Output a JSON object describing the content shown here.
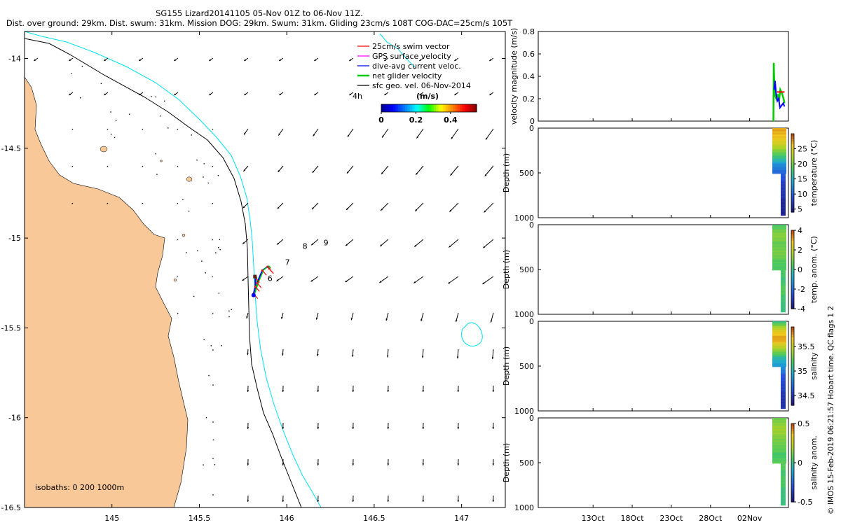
{
  "header": {
    "line1": "SG155 Lizard20141105 05-Nov 01Z to 06-Nov 11Z.",
    "line2": "Dist. over ground: 29km. Dist. swum: 31km. Mission DOG: 29km. Swum: 31km. Gliding 23cm/s 108T COG-DAC=25cm/s 105T"
  },
  "credit": "© IMOS 15-Feb-2019 06:21:57 Hobart time. QC flags 1  2",
  "colors": {
    "land": "#f8c898",
    "isobath_200": "#000000",
    "isobath_1000": "#00e0f0",
    "swim": "#ff0000",
    "gps": "#ff00ff",
    "dac": "#0000ff",
    "net": "#00cc00",
    "geo": "#000000"
  },
  "chart_data": [
    {
      "type": "map",
      "title": "",
      "xlim": [
        144.5,
        147.25
      ],
      "ylim": [
        -16.5,
        -13.85
      ],
      "xticks": [
        145,
        145.5,
        146,
        146.5,
        147
      ],
      "xtick_labels": [
        "145",
        "145.5",
        "146",
        "146.5",
        "147"
      ],
      "yticks": [
        -14,
        -14.5,
        -15,
        -15.5,
        -16,
        -16.5
      ],
      "ytick_labels": [
        "-14",
        "-14.5",
        "-15",
        "-15.5",
        "-16",
        "-16.5"
      ],
      "legend": [
        {
          "label": "25cm/s swim vector",
          "color": "#ff0000"
        },
        {
          "label": "GPS surface velocity",
          "color": "#ff00ff"
        },
        {
          "label": "dive-avg current veloc.",
          "color": "#0000ff"
        },
        {
          "label": "net glider velocity",
          "color": "#00cc00"
        },
        {
          "label": "sfc geo. vel. 06-Nov-2014",
          "color": "#000000"
        }
      ],
      "scale_label": "4h",
      "colorbar": {
        "label": "(m/s)",
        "ticks": [
          0,
          0.2,
          0.4
        ],
        "tick_labels": [
          "0",
          "0.2",
          "0.4"
        ],
        "range": [
          0,
          0.55
        ]
      },
      "isobaths_label": "isobaths: 0   200  1000m",
      "annotations": [
        {
          "text": "6",
          "lon": 145.89,
          "lat": -15.24
        },
        {
          "text": "7",
          "lon": 145.99,
          "lat": -15.15
        },
        {
          "text": "8",
          "lon": 146.09,
          "lat": -15.06
        },
        {
          "text": "9",
          "lon": 146.21,
          "lat": -15.04
        }
      ],
      "track": [
        [
          145.82,
          -15.22
        ],
        [
          145.82,
          -15.27
        ],
        [
          145.81,
          -15.31
        ],
        [
          145.83,
          -15.25
        ],
        [
          145.86,
          -15.18
        ],
        [
          145.89,
          -15.16
        ],
        [
          145.9,
          -15.17
        ]
      ]
    },
    {
      "type": "line",
      "ylabel": "velocity magnitude (m/s)",
      "ylim": [
        0,
        0.8
      ],
      "yticks": [
        0,
        0.2,
        0.4,
        0.6,
        0.8
      ],
      "ytick_labels": [
        "0",
        "0.2",
        "0.4",
        "0.6",
        "0.8"
      ],
      "xlim": [
        "2014-10-06",
        "2014-11-06"
      ],
      "series": [
        {
          "color": "#00cc00",
          "x": [
            "2014-11-05T01",
            "2014-11-05T02",
            "2014-11-05T04",
            "2014-11-05T07",
            "2014-11-05T10",
            "2014-11-05T14",
            "2014-11-05T18",
            "2014-11-05T22",
            "2014-11-06T03",
            "2014-11-06T08",
            "2014-11-06T11"
          ],
          "values": [
            0.0,
            0.52,
            0.3,
            0.22,
            0.2,
            0.24,
            0.18,
            0.28,
            0.25,
            0.2,
            0.16
          ]
        },
        {
          "color": "#0000ff",
          "x": [
            "2014-11-05T03",
            "2014-11-05T06",
            "2014-11-05T09",
            "2014-11-05T13",
            "2014-11-05T17",
            "2014-11-05T21",
            "2014-11-06T02",
            "2014-11-06T07",
            "2014-11-06T11"
          ],
          "values": [
            0.28,
            0.36,
            0.25,
            0.18,
            0.2,
            0.12,
            0.14,
            0.16,
            0.13
          ]
        },
        {
          "color": "#ff0000",
          "x": [
            "2014-11-05T12",
            "2014-11-06T11"
          ],
          "values": [
            0.26,
            0.26
          ]
        }
      ]
    },
    {
      "type": "heatmap",
      "ylabel": "Depth (m)",
      "yticks": [
        0,
        500,
        1000
      ],
      "ytick_labels": [
        "0",
        "500",
        "1000"
      ],
      "colorbar": {
        "label": "temperature (°C)",
        "range": [
          4,
          30
        ],
        "ticks": [
          5,
          10,
          15,
          20,
          25
        ],
        "tick_labels": [
          "5",
          "10",
          "15",
          "20",
          "25"
        ]
      },
      "profile": {
        "depth": [
          0,
          100,
          200,
          300,
          400,
          500,
          600,
          700,
          800,
          900,
          950
        ],
        "values": [
          27.5,
          26,
          23,
          18,
          13,
          10,
          8,
          7,
          6,
          5.5,
          5
        ]
      }
    },
    {
      "type": "heatmap",
      "ylabel": "Depth (m)",
      "yticks": [
        0,
        500,
        1000
      ],
      "ytick_labels": [
        "0",
        "500",
        "1000"
      ],
      "colorbar": {
        "label": "temp. anom. (°C)",
        "range": [
          -4,
          4
        ],
        "ticks": [
          -4,
          -2,
          0,
          2,
          4
        ],
        "tick_labels": [
          "-4",
          "-2",
          "0",
          "2",
          "4"
        ]
      },
      "profile": {
        "depth": [
          0,
          100,
          200,
          300,
          400,
          500,
          600,
          700,
          800,
          900,
          950
        ],
        "values": [
          0.5,
          1.2,
          0.8,
          1.0,
          0.6,
          0.4,
          0.2,
          0.6,
          0.3,
          0.1,
          0.0
        ]
      }
    },
    {
      "type": "heatmap",
      "ylabel": "Depth (m)",
      "yticks": [
        0,
        500,
        1000
      ],
      "ytick_labels": [
        "0",
        "500",
        "1000"
      ],
      "colorbar": {
        "label": "salinity",
        "range": [
          34.3,
          35.9
        ],
        "ticks": [
          34.5,
          35,
          35.5
        ],
        "tick_labels": [
          "34.5",
          "35",
          "35.5"
        ]
      },
      "profile": {
        "depth": [
          0,
          100,
          200,
          300,
          400,
          500,
          600,
          700,
          800,
          900,
          950
        ],
        "values": [
          35.15,
          35.6,
          35.75,
          35.4,
          35.05,
          34.85,
          34.65,
          34.55,
          34.5,
          34.45,
          34.45
        ]
      }
    },
    {
      "type": "heatmap",
      "ylabel": "Depth (m)",
      "yticks": [
        0,
        500,
        1000
      ],
      "ytick_labels": [
        "0",
        "500",
        "1000"
      ],
      "xtick_labels": [
        "13Oct",
        "18Oct",
        "23Oct",
        "28Oct",
        "02Nov"
      ],
      "colorbar": {
        "label": "salinity anom.",
        "range": [
          -0.5,
          0.5
        ],
        "ticks": [
          -0.5,
          0,
          0.5
        ],
        "tick_labels": [
          "-0.5",
          "0",
          "0.5"
        ]
      },
      "profile": {
        "depth": [
          0,
          100,
          200,
          300,
          400,
          500,
          600,
          700,
          800,
          900,
          950
        ],
        "values": [
          0.12,
          0.18,
          0.15,
          0.1,
          0.05,
          0.08,
          0.04,
          0.06,
          0.02,
          0.01,
          0.0
        ]
      }
    }
  ]
}
